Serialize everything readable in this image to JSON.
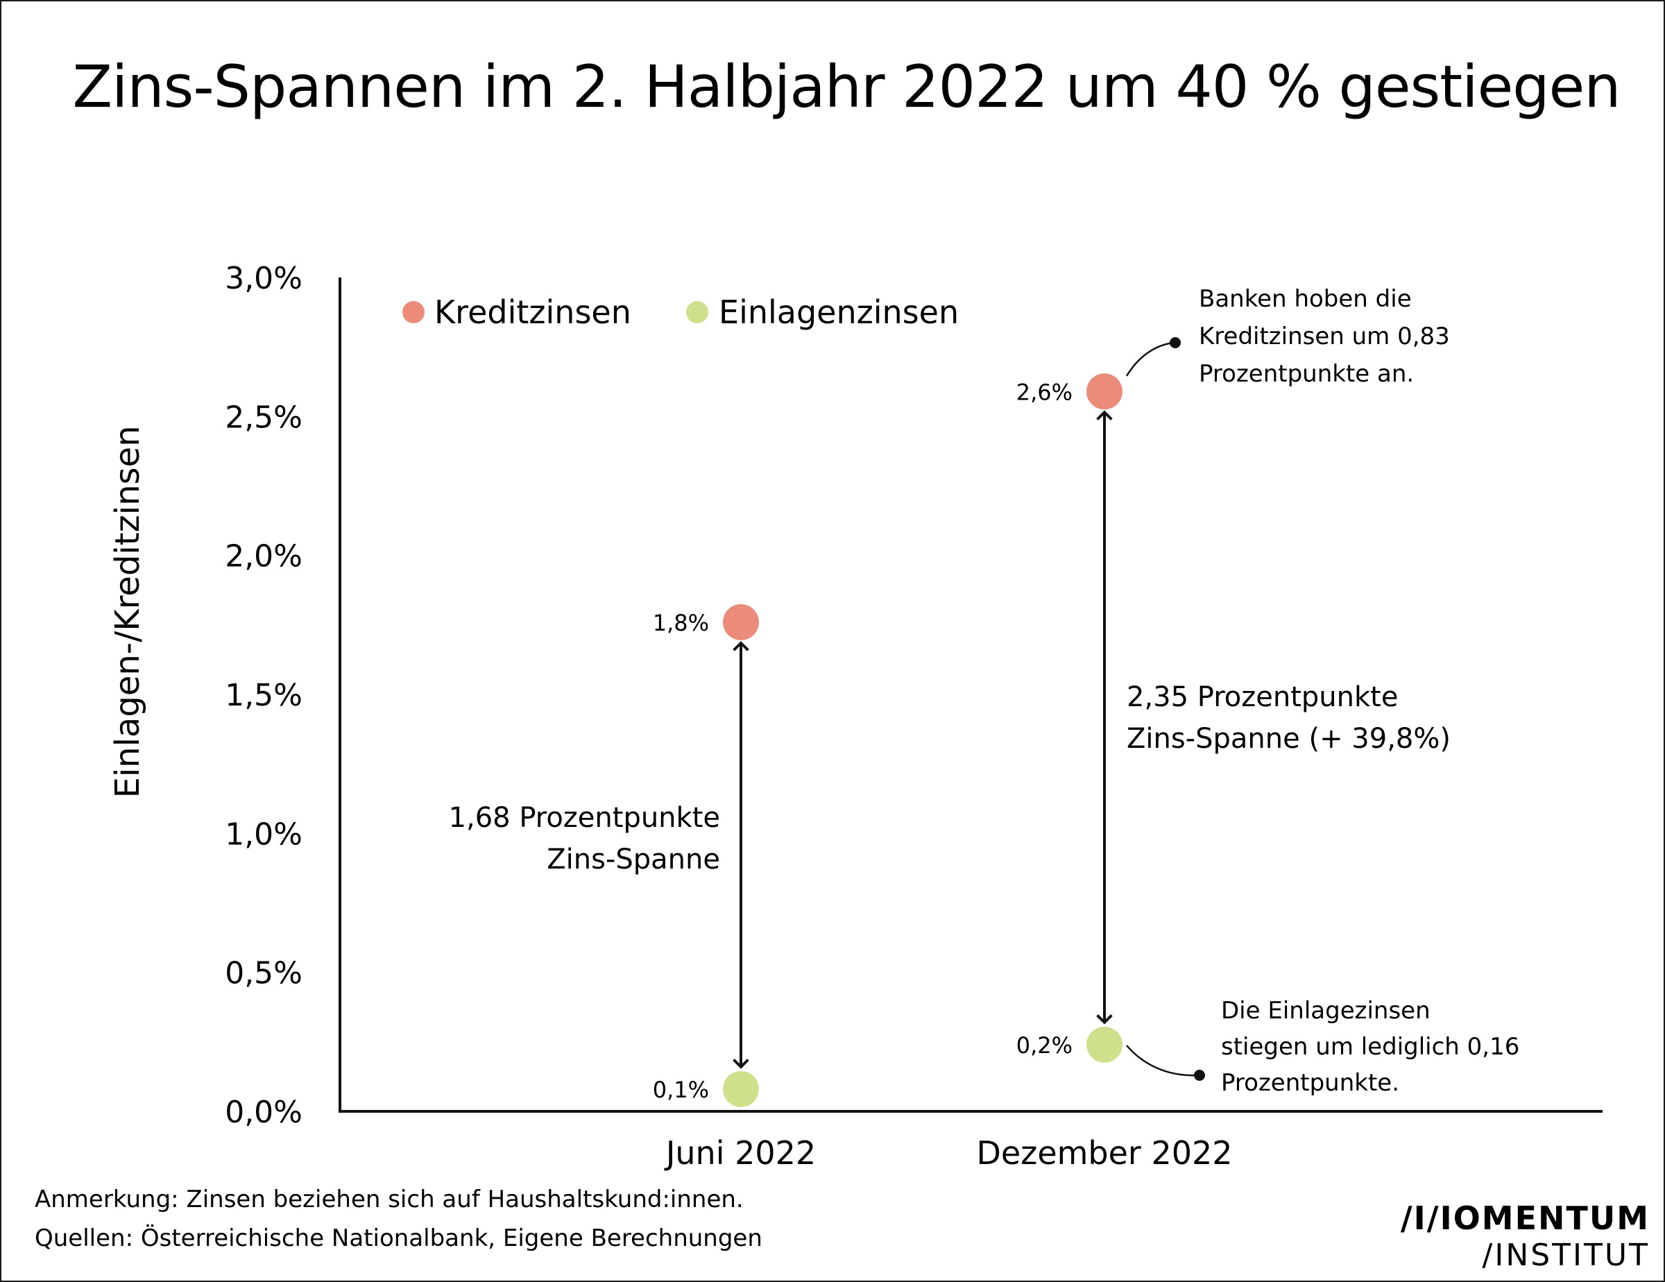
{
  "title": "Zins-Spannen im 2. Halbjahr 2022 um 40 % gestiegen",
  "footer": {
    "note": "Anmerkung: Zinsen beziehen sich auf Haushaltskund:innen.",
    "source": "Quellen: Österreichische Nationalbank, Eigene Berechnungen"
  },
  "logo": {
    "line1": "/I/IOMENTUM",
    "line2": "/INSTITUT"
  },
  "colors": {
    "kredit": "#eb8b79",
    "einlagen": "#cfe08c",
    "ink": "#111111"
  },
  "chart_data": {
    "type": "scatter",
    "title": "Zins-Spannen im 2. Halbjahr 2022 um 40 % gestiegen",
    "ylabel": "Einlagen-/Kreditzinsen",
    "xlabel": "",
    "ylim": [
      0,
      3.0
    ],
    "yticks": [
      0,
      0.5,
      1.0,
      1.5,
      2.0,
      2.5,
      3.0
    ],
    "ytick_labels": [
      "0,0%",
      "0,5%",
      "1,0%",
      "1,5%",
      "2,0%",
      "2,5%",
      "3,0%"
    ],
    "categories": [
      "Juni 2022",
      "Dezember 2022"
    ],
    "legend_position": "top-left",
    "series": [
      {
        "name": "Kreditzinsen",
        "values": [
          1.76,
          2.59
        ],
        "labels": [
          "1,8%",
          "2,6%"
        ]
      },
      {
        "name": "Einlagenzinsen",
        "values": [
          0.08,
          0.24
        ],
        "labels": [
          "0,1%",
          "0,2%"
        ]
      }
    ],
    "spreads": [
      {
        "lines": [
          "1,68 Prozentpunkte",
          "Zins-Spanne"
        ]
      },
      {
        "lines": [
          "2,35 Prozentpunkte",
          "Zins-Spanne (+ 39,8%)"
        ]
      }
    ],
    "annotations": [
      {
        "lines": [
          "Banken hoben die",
          "Kreditzinsen um 0,83",
          "Prozentpunkte an."
        ]
      },
      {
        "lines": [
          "Die Einlagezinsen",
          "stiegen um lediglich 0,16",
          "Prozentpunkte."
        ]
      }
    ],
    "grid": false
  }
}
